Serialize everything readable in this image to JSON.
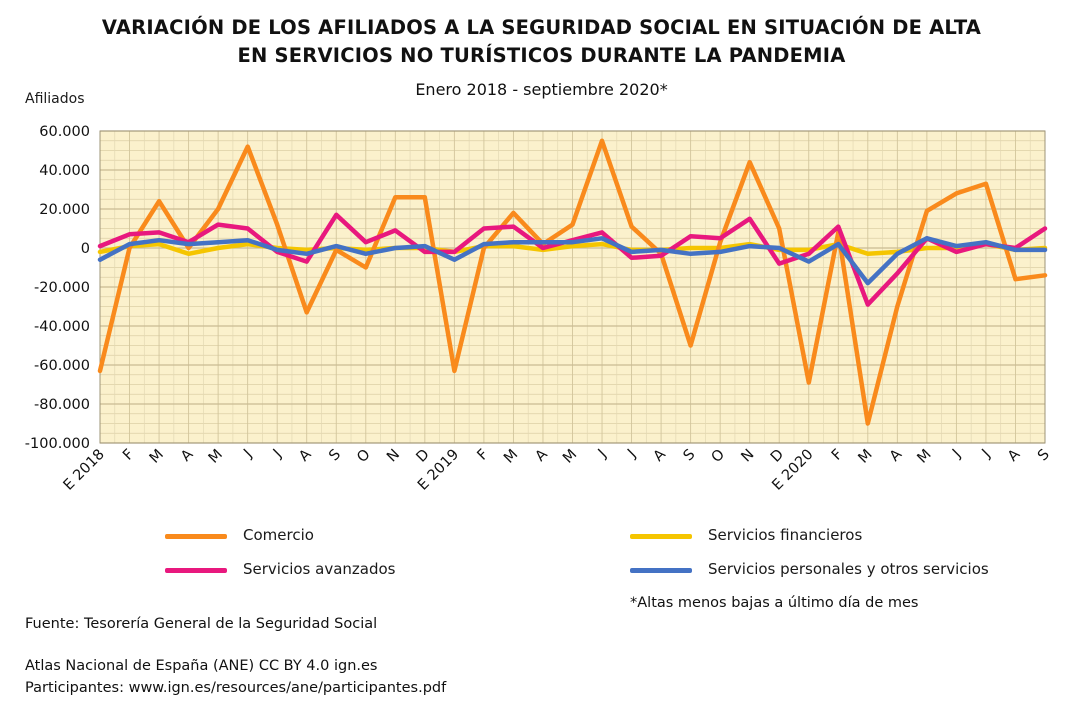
{
  "title_line1": "VARIACIÓN DE LOS AFILIADOS A LA SEGURIDAD SOCIAL EN SITUACIÓN DE ALTA",
  "title_line2": "EN SERVICIOS NO TURÍSTICOS DURANTE LA PANDEMIA",
  "subtitle": "Enero 2018 - septiembre 2020*",
  "footnote": "*Altas menos bajas a último día de mes",
  "source": "Fuente: Tesorería General de la Seguridad Social",
  "credit_line1": "Atlas Nacional de España (ANE) CC BY 4.0 ign.es",
  "credit_line2": "Participantes: www.ign.es/resources/ane/participantes.pdf",
  "chart_data": {
    "type": "line",
    "ylabel": "Afiliados",
    "ylim": [
      -100000,
      60000
    ],
    "yticks": [
      60000,
      40000,
      20000,
      0,
      -20000,
      -40000,
      -60000,
      -80000,
      -100000
    ],
    "ytick_labels": [
      "60.000",
      "40.000",
      "20.000",
      "0",
      "-20.000",
      "-40.000",
      "-60.000",
      "-80.000",
      "-100.000"
    ],
    "categories": [
      "E 2018",
      "F",
      "M",
      "A",
      "M",
      "J",
      "J",
      "A",
      "S",
      "O",
      "N",
      "D",
      "E 2019",
      "F",
      "M",
      "A",
      "M",
      "J",
      "J",
      "A",
      "S",
      "O",
      "N",
      "D",
      "E 2020",
      "F",
      "M",
      "A",
      "M",
      "J",
      "J",
      "A",
      "S"
    ],
    "grid": true,
    "background_color": "#fbf1cc",
    "grid_color": "#c9bb93",
    "legend_position": "bottom",
    "series": [
      {
        "name": "Comercio",
        "color": "#f98a1c",
        "values": [
          -63000,
          0,
          24000,
          0,
          20000,
          52000,
          12000,
          -33000,
          -1000,
          -10000,
          26000,
          26000,
          -63000,
          0,
          18000,
          2000,
          12000,
          55000,
          11000,
          -3000,
          -50000,
          3000,
          44000,
          10000,
          -69000,
          8000,
          -90000,
          -30000,
          19000,
          28000,
          33000,
          -16000,
          -14000
        ]
      },
      {
        "name": "Servicios financieros",
        "color": "#f5c500",
        "values": [
          -2000,
          1000,
          2000,
          -3000,
          0,
          2000,
          0,
          -1000,
          0,
          -1000,
          0,
          0,
          -2000,
          1000,
          1000,
          -1000,
          1000,
          2000,
          -1000,
          -1000,
          0,
          0,
          2000,
          -1000,
          -1000,
          2000,
          -3000,
          -2000,
          0,
          0,
          2000,
          -1000,
          0
        ]
      },
      {
        "name": "Servicios avanzados",
        "color": "#e8187e",
        "values": [
          1000,
          7000,
          8000,
          3000,
          12000,
          10000,
          -2000,
          -7000,
          17000,
          3000,
          9000,
          -2000,
          -2000,
          10000,
          11000,
          0,
          4000,
          8000,
          -5000,
          -4000,
          6000,
          5000,
          15000,
          -8000,
          -3000,
          11000,
          -29000,
          -13000,
          5000,
          -2000,
          2000,
          0,
          10000
        ]
      },
      {
        "name": "Servicios personales y otros servicios",
        "color": "#4472c4",
        "values": [
          -6000,
          2000,
          4000,
          2000,
          3000,
          4000,
          -1000,
          -3000,
          1000,
          -3000,
          0,
          1000,
          -6000,
          2000,
          3000,
          3000,
          3000,
          5000,
          -2000,
          -1000,
          -3000,
          -2000,
          1000,
          0,
          -7000,
          2000,
          -18000,
          -3000,
          5000,
          1000,
          3000,
          -1000,
          -1000
        ]
      }
    ]
  }
}
